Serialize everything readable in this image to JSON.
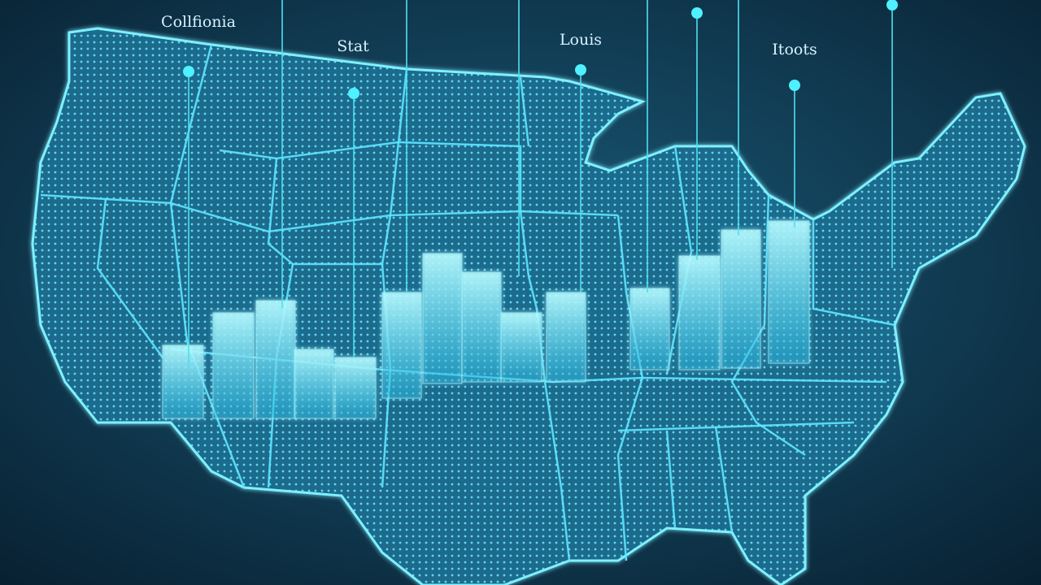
{
  "labels": [
    "Collfionia",
    "Stat",
    "Louis",
    "Itoots"
  ]
}
